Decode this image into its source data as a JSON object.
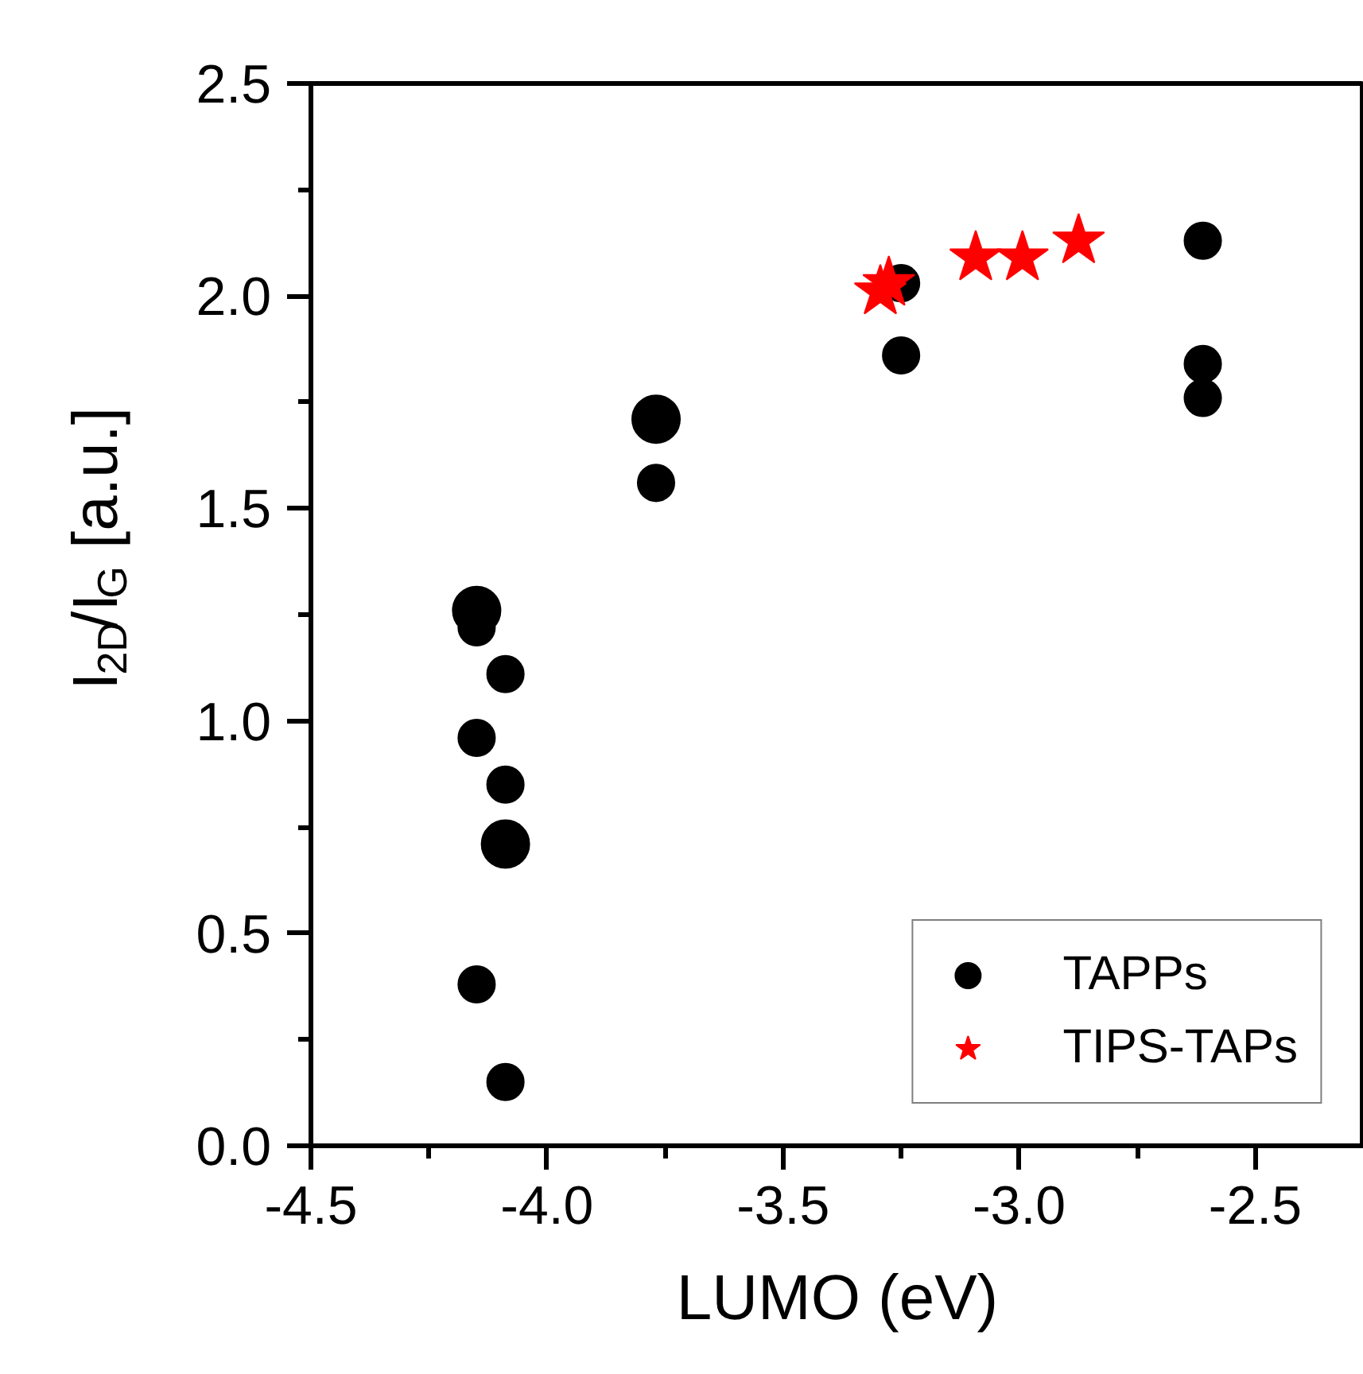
{
  "chart_data": {
    "type": "scatter",
    "xlabel": "LUMO (eV)",
    "ylabel": "I$_{2D}$/I$_{G}$ [a.u.]",
    "xlim": [
      -4.5,
      -2.27
    ],
    "ylim": [
      0,
      2.5
    ],
    "xticks": [
      -4.5,
      {
        "value": -4.0,
        "label": "-4.0"
      },
      -3.5,
      {
        "value": -3.0,
        "label": "-3.0"
      },
      -2.5
    ],
    "yticks": [
      {
        "value": 0,
        "label": "0.0"
      },
      0.5,
      {
        "value": 1.0,
        "label": "1.0"
      },
      1.5,
      {
        "value": 2.0,
        "label": "2.0"
      },
      2.5
    ],
    "grid": false,
    "legend": "bottom right",
    "series": [
      {
        "name": "TAPPs",
        "type": "bubble",
        "marker": "circle",
        "color": "#000000",
        "x": [
          -4.149,
          -4.149,
          -4.088,
          -4.149,
          -4.088,
          -4.088,
          -4.149,
          -4.088,
          -3.769,
          -3.769,
          -3.25,
          -3.25,
          -2.611,
          -2.611,
          -2.611
        ],
        "values": [
          1.26,
          1.22,
          1.11,
          0.96,
          0.85,
          0.71,
          0.38,
          0.15,
          1.71,
          1.56,
          2.03,
          1.86,
          2.13,
          1.84,
          1.76
        ],
        "sizes": [
          1,
          0.59,
          0.59,
          0.59,
          0.59,
          1,
          0.59,
          0.59,
          1,
          0.59,
          0.59,
          0.59,
          0.59,
          0.59,
          0.59
        ]
      },
      {
        "name": "TIPS-TAPs",
        "marker": "star",
        "color": "#ff0000",
        "x": [
          -3.294,
          -3.276,
          -3.092,
          -2.993,
          -2.874
        ],
        "values": [
          2.01,
          2.03,
          2.09,
          2.09,
          2.13
        ]
      }
    ]
  }
}
